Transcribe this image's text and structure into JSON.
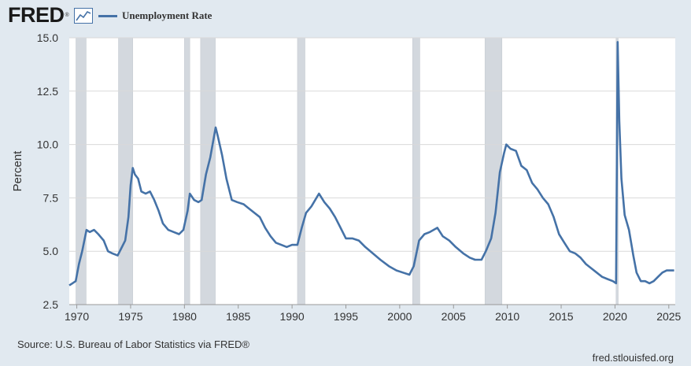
{
  "header": {
    "logo_text": "FRED",
    "logo_mark": "®",
    "logo_icon": "trend-line-icon"
  },
  "footer": {
    "source": "Source: U.S. Bureau of Labor Statistics via FRED®",
    "site": "fred.stlouisfed.org"
  },
  "colors": {
    "line": "#4572a7",
    "recession": "#d3d8de",
    "background": "#e1e9f0",
    "plot": "#ffffff"
  },
  "chart_data": {
    "type": "line",
    "title": "",
    "xlabel": "",
    "ylabel": "Percent",
    "xlim": [
      1969.3,
      2025.6
    ],
    "ylim": [
      2.5,
      15.0
    ],
    "yticks": [
      2.5,
      5.0,
      7.5,
      10.0,
      12.5,
      15.0
    ],
    "ytick_labels": [
      "2.5",
      "5.0",
      "7.5",
      "10.0",
      "12.5",
      "15.0"
    ],
    "xticks": [
      1970,
      1975,
      1980,
      1985,
      1990,
      1995,
      2000,
      2005,
      2010,
      2015,
      2020,
      2025
    ],
    "xtick_labels": [
      "1970",
      "1975",
      "1980",
      "1985",
      "1990",
      "1995",
      "2000",
      "2005",
      "2010",
      "2015",
      "2020",
      "2025"
    ],
    "grid": true,
    "legend_position": "top-left",
    "recessions": [
      [
        1969.92,
        1970.87
      ],
      [
        1973.87,
        1975.2
      ],
      [
        1980.0,
        1980.5
      ],
      [
        1981.5,
        1982.87
      ],
      [
        1990.5,
        1991.2
      ],
      [
        2001.2,
        2001.87
      ],
      [
        2007.92,
        2009.5
      ],
      [
        2020.1,
        2020.3
      ]
    ],
    "series": [
      {
        "name": "Unemployment Rate",
        "x": [
          1969.3,
          1969.6,
          1969.9,
          1970.2,
          1970.5,
          1970.9,
          1971.2,
          1971.6,
          1972.0,
          1972.5,
          1972.9,
          1973.3,
          1973.8,
          1974.1,
          1974.5,
          1974.8,
          1975.0,
          1975.2,
          1975.4,
          1975.7,
          1976.0,
          1976.4,
          1976.8,
          1977.2,
          1977.6,
          1978.0,
          1978.5,
          1979.0,
          1979.5,
          1979.9,
          1980.3,
          1980.5,
          1980.9,
          1981.3,
          1981.6,
          1982.0,
          1982.4,
          1982.9,
          1983.1,
          1983.5,
          1983.9,
          1984.4,
          1984.9,
          1985.5,
          1986.0,
          1986.5,
          1987.0,
          1987.5,
          1988.0,
          1988.5,
          1989.0,
          1989.5,
          1990.0,
          1990.5,
          1990.9,
          1991.3,
          1991.8,
          1992.5,
          1993.0,
          1993.5,
          1994.0,
          1994.5,
          1995.0,
          1995.6,
          1996.2,
          1996.8,
          1997.5,
          1998.2,
          1999.0,
          1999.7,
          2000.3,
          2000.9,
          2001.3,
          2001.8,
          2002.3,
          2002.8,
          2003.5,
          2004.0,
          2004.6,
          2005.2,
          2005.9,
          2006.5,
          2007.0,
          2007.6,
          2008.0,
          2008.5,
          2008.9,
          2009.3,
          2009.7,
          2009.9,
          2010.3,
          2010.8,
          2011.3,
          2011.8,
          2012.3,
          2012.8,
          2013.3,
          2013.8,
          2014.3,
          2014.8,
          2015.3,
          2015.8,
          2016.3,
          2016.8,
          2017.3,
          2017.8,
          2018.3,
          2018.8,
          2019.3,
          2019.8,
          2020.1,
          2020.25,
          2020.4,
          2020.6,
          2020.9,
          2021.3,
          2021.7,
          2022.0,
          2022.4,
          2022.8,
          2023.2,
          2023.6,
          2024.0,
          2024.4,
          2024.8,
          2025.2,
          2025.5
        ],
        "y": [
          3.4,
          3.5,
          3.6,
          4.4,
          5.0,
          6.0,
          5.9,
          6.0,
          5.8,
          5.5,
          5.0,
          4.9,
          4.8,
          5.1,
          5.5,
          6.6,
          8.1,
          8.9,
          8.6,
          8.4,
          7.8,
          7.7,
          7.8,
          7.4,
          6.9,
          6.3,
          6.0,
          5.9,
          5.8,
          6.0,
          6.9,
          7.7,
          7.4,
          7.3,
          7.4,
          8.6,
          9.4,
          10.8,
          10.4,
          9.5,
          8.4,
          7.4,
          7.3,
          7.2,
          7.0,
          6.8,
          6.6,
          6.1,
          5.7,
          5.4,
          5.3,
          5.2,
          5.3,
          5.3,
          6.1,
          6.8,
          7.1,
          7.7,
          7.3,
          7.0,
          6.6,
          6.1,
          5.6,
          5.6,
          5.5,
          5.2,
          4.9,
          4.6,
          4.3,
          4.1,
          4.0,
          3.9,
          4.3,
          5.5,
          5.8,
          5.9,
          6.1,
          5.7,
          5.5,
          5.2,
          4.9,
          4.7,
          4.6,
          4.6,
          5.0,
          5.6,
          6.8,
          8.7,
          9.6,
          10.0,
          9.8,
          9.7,
          9.0,
          8.8,
          8.2,
          7.9,
          7.5,
          7.2,
          6.6,
          5.8,
          5.4,
          5.0,
          4.9,
          4.7,
          4.4,
          4.2,
          4.0,
          3.8,
          3.7,
          3.6,
          3.5,
          14.8,
          11.1,
          8.4,
          6.7,
          6.0,
          4.8,
          4.0,
          3.6,
          3.6,
          3.5,
          3.6,
          3.8,
          4.0,
          4.1,
          4.1,
          4.1
        ]
      }
    ]
  }
}
